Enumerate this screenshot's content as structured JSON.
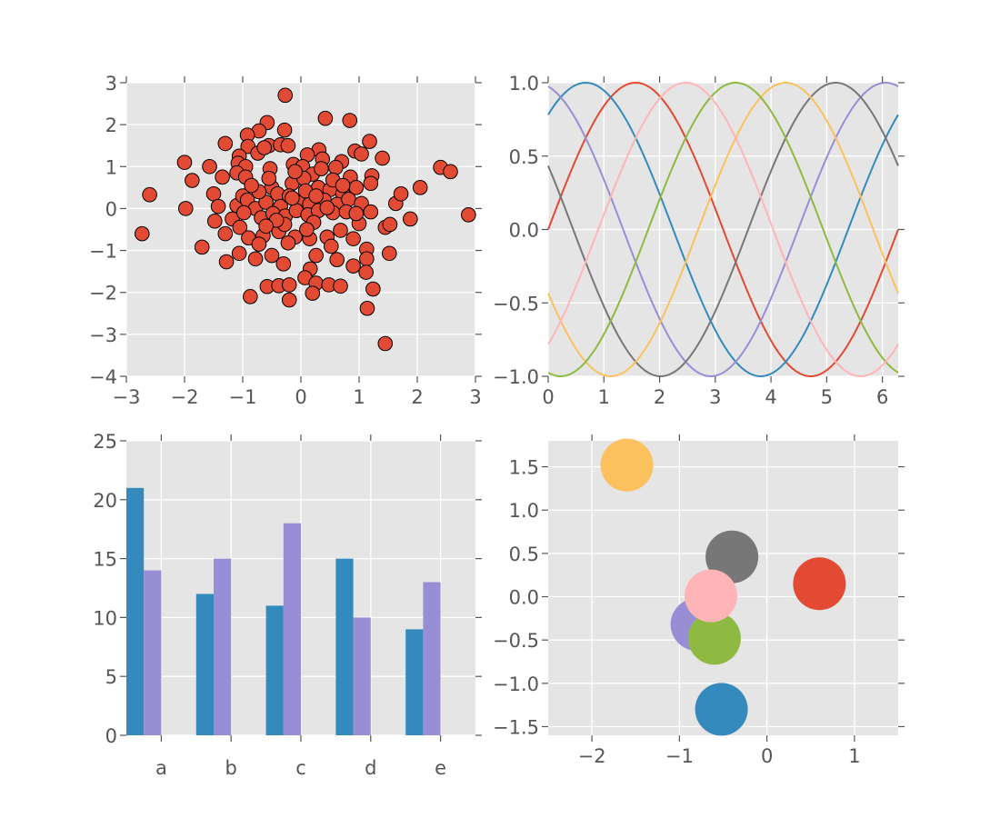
{
  "chart_data": [
    {
      "id": "scatter",
      "type": "scatter",
      "xlim": [
        -3,
        3
      ],
      "ylim": [
        -4,
        3
      ],
      "grid": true,
      "marker_color": "#E24A33",
      "x_ticks": [
        -3,
        -2,
        -1,
        0,
        1,
        2,
        3
      ],
      "x_tick_labels": [
        "−3",
        "−2",
        "−1",
        "0",
        "1",
        "2",
        "3"
      ],
      "y_ticks": [
        -4,
        -3,
        -2,
        -1,
        0,
        1,
        2,
        3
      ],
      "y_tick_labels": [
        "−4",
        "−3",
        "−2",
        "−1",
        "0",
        "1",
        "2",
        "3"
      ],
      "points": [
        [
          -0.27,
          2.7
        ],
        [
          0.42,
          2.15
        ],
        [
          0.84,
          2.1
        ],
        [
          -0.58,
          2.05
        ],
        [
          -0.28,
          1.87
        ],
        [
          -0.72,
          1.85
        ],
        [
          -0.92,
          1.75
        ],
        [
          1.18,
          1.6
        ],
        [
          -1.3,
          1.55
        ],
        [
          -0.91,
          1.48
        ],
        [
          -0.55,
          1.5
        ],
        [
          -0.35,
          1.52
        ],
        [
          -0.22,
          1.5
        ],
        [
          0.31,
          1.4
        ],
        [
          0.93,
          1.37
        ],
        [
          0.11,
          1.28
        ],
        [
          1.04,
          1.3
        ],
        [
          -1.06,
          1.25
        ],
        [
          -0.74,
          1.32
        ],
        [
          -0.63,
          1.45
        ],
        [
          0.37,
          1.18
        ],
        [
          0.7,
          1.12
        ],
        [
          1.4,
          1.2
        ],
        [
          -2.0,
          1.1
        ],
        [
          -1.57,
          1.0
        ],
        [
          -1.08,
          1.08
        ],
        [
          -0.95,
          1.0
        ],
        [
          -0.53,
          0.95
        ],
        [
          -0.13,
          1.05
        ],
        [
          0.03,
          1.0
        ],
        [
          0.6,
          0.98
        ],
        [
          -1.1,
          0.85
        ],
        [
          -0.95,
          0.75
        ],
        [
          0.2,
          0.82
        ],
        [
          0.85,
          0.75
        ],
        [
          1.22,
          0.78
        ],
        [
          2.4,
          0.98
        ],
        [
          2.57,
          0.88
        ],
        [
          -1.87,
          0.67
        ],
        [
          -1.5,
          0.35
        ],
        [
          -1.42,
          0.05
        ],
        [
          -1.1,
          0.07
        ],
        [
          -1.0,
          0.3
        ],
        [
          -0.92,
          0.2
        ],
        [
          -0.78,
          0.0
        ],
        [
          -0.5,
          0.5
        ],
        [
          -0.4,
          0.35
        ],
        [
          -0.15,
          0.6
        ],
        [
          0.05,
          0.72
        ],
        [
          0.3,
          0.5
        ],
        [
          0.5,
          0.45
        ],
        [
          0.72,
          0.35
        ],
        [
          0.95,
          0.5
        ],
        [
          1.2,
          0.6
        ],
        [
          2.05,
          0.5
        ],
        [
          -2.6,
          0.33
        ],
        [
          -0.6,
          0.15
        ],
        [
          -0.35,
          0.05
        ],
        [
          -0.2,
          0.3
        ],
        [
          -0.05,
          0.15
        ],
        [
          0.15,
          0.1
        ],
        [
          0.4,
          0.2
        ],
        [
          0.62,
          0.1
        ],
        [
          0.82,
          0.22
        ],
        [
          1.04,
          0.12
        ],
        [
          1.63,
          0.12
        ],
        [
          1.72,
          0.35
        ],
        [
          -1.98,
          0.0
        ],
        [
          -1.48,
          -0.3
        ],
        [
          -1.18,
          -0.25
        ],
        [
          -0.98,
          -0.1
        ],
        [
          -0.68,
          -0.22
        ],
        [
          -0.48,
          -0.12
        ],
        [
          -0.27,
          -0.18
        ],
        [
          -0.08,
          -0.05
        ],
        [
          0.12,
          -0.15
        ],
        [
          0.3,
          -0.05
        ],
        [
          0.55,
          -0.1
        ],
        [
          0.78,
          -0.08
        ],
        [
          1.0,
          -0.36
        ],
        [
          1.45,
          -0.45
        ],
        [
          1.88,
          -0.25
        ],
        [
          2.88,
          -0.15
        ],
        [
          -2.73,
          -0.6
        ],
        [
          -1.3,
          -0.6
        ],
        [
          -1.05,
          -0.45
        ],
        [
          -0.9,
          -0.7
        ],
        [
          -0.65,
          -0.65
        ],
        [
          -0.38,
          -0.55
        ],
        [
          -0.1,
          -0.68
        ],
        [
          0.15,
          -0.72
        ],
        [
          0.45,
          -0.68
        ],
        [
          0.68,
          -0.52
        ],
        [
          0.9,
          -0.72
        ],
        [
          -1.7,
          -0.92
        ],
        [
          -0.72,
          -0.85
        ],
        [
          -0.22,
          -0.82
        ],
        [
          0.52,
          -0.9
        ],
        [
          1.13,
          -0.97
        ],
        [
          1.52,
          -1.07
        ],
        [
          -1.28,
          -1.27
        ],
        [
          -1.06,
          -1.07
        ],
        [
          -0.5,
          -1.12
        ],
        [
          0.26,
          -1.12
        ],
        [
          0.62,
          -1.22
        ],
        [
          0.9,
          -1.37
        ],
        [
          1.13,
          -1.2
        ],
        [
          -0.78,
          -1.2
        ],
        [
          -0.3,
          -1.32
        ],
        [
          0.16,
          -1.44
        ],
        [
          1.12,
          -1.52
        ],
        [
          0.07,
          -1.65
        ],
        [
          0.26,
          -1.78
        ],
        [
          -0.58,
          -1.86
        ],
        [
          -0.38,
          -1.84
        ],
        [
          -0.2,
          -1.82
        ],
        [
          0.48,
          -1.82
        ],
        [
          0.68,
          -1.85
        ],
        [
          1.24,
          -1.92
        ],
        [
          0.2,
          -2.02
        ],
        [
          -0.87,
          -2.1
        ],
        [
          -0.2,
          -2.18
        ],
        [
          1.14,
          -2.38
        ],
        [
          1.45,
          -3.22
        ],
        [
          -0.55,
          0.72
        ],
        [
          -0.1,
          0.88
        ],
        [
          0.08,
          0.42
        ],
        [
          0.26,
          0.3
        ],
        [
          -0.72,
          0.4
        ],
        [
          0.45,
          0.02
        ],
        [
          -0.28,
          -0.38
        ],
        [
          0.22,
          -0.33
        ],
        [
          0.55,
          0.68
        ],
        [
          0.95,
          -0.12
        ],
        [
          1.2,
          -0.08
        ],
        [
          -1.35,
          0.75
        ],
        [
          -0.15,
          0.25
        ],
        [
          -0.42,
          -0.28
        ],
        [
          0.1,
          -0.5
        ],
        [
          0.35,
          0.95
        ],
        [
          0.72,
          0.55
        ],
        [
          -0.85,
          0.55
        ],
        [
          1.53,
          -0.38
        ],
        [
          -0.6,
          -0.42
        ]
      ]
    },
    {
      "id": "lines",
      "type": "line",
      "xlim": [
        0,
        6.2832
      ],
      "ylim": [
        -1,
        1
      ],
      "grid": true,
      "x_ticks": [
        0,
        1,
        2,
        3,
        4,
        5,
        6
      ],
      "x_tick_labels": [
        "0",
        "1",
        "2",
        "3",
        "4",
        "5",
        "6"
      ],
      "y_ticks": [
        -1,
        -0.5,
        0,
        0.5,
        1
      ],
      "y_tick_labels": [
        "−1.0",
        "−0.5",
        "0.0",
        "0.5",
        "1.0"
      ],
      "series": [
        {
          "color": "#E24A33",
          "phase": 0.0
        },
        {
          "color": "#348ABD",
          "phase": 0.8976
        },
        {
          "color": "#988ED5",
          "phase": 1.7952
        },
        {
          "color": "#777777",
          "phase": 2.6928
        },
        {
          "color": "#FBC15E",
          "phase": 3.5904
        },
        {
          "color": "#8EBA42",
          "phase": 4.488
        },
        {
          "color": "#FFB5B8",
          "phase": 5.3856
        }
      ]
    },
    {
      "id": "bars",
      "type": "bar",
      "categories": [
        "a",
        "b",
        "c",
        "d",
        "e"
      ],
      "ylim": [
        0,
        25
      ],
      "grid": true,
      "y_ticks": [
        0,
        5,
        10,
        15,
        20,
        25
      ],
      "y_tick_labels": [
        "0",
        "5",
        "10",
        "15",
        "20",
        "25"
      ],
      "series": [
        {
          "color": "#348ABD",
          "values": [
            21,
            12,
            11,
            15,
            9
          ]
        },
        {
          "color": "#988ED5",
          "values": [
            14,
            15,
            18,
            10,
            13
          ]
        }
      ]
    },
    {
      "id": "circles",
      "type": "scatter",
      "xlim": [
        -2.5,
        1.5
      ],
      "ylim": [
        -1.6,
        1.8
      ],
      "grid": true,
      "x_ticks": [
        -2,
        -1,
        0,
        1
      ],
      "x_tick_labels": [
        "−2",
        "−1",
        "0",
        "1"
      ],
      "y_ticks": [
        -1.5,
        -1.0,
        -0.5,
        0.0,
        0.5,
        1.0,
        1.5
      ],
      "y_tick_labels": [
        "−1.5",
        "−1.0",
        "−0.5",
        "0.0",
        "0.5",
        "1.0",
        "1.5"
      ],
      "points": [
        {
          "x": 0.6,
          "y": 0.15,
          "color": "#E24A33"
        },
        {
          "x": -0.52,
          "y": -1.3,
          "color": "#348ABD"
        },
        {
          "x": -0.8,
          "y": -0.32,
          "color": "#988ED5"
        },
        {
          "x": -0.4,
          "y": 0.46,
          "color": "#777777"
        },
        {
          "x": -1.6,
          "y": 1.52,
          "color": "#FBC15E"
        },
        {
          "x": -0.6,
          "y": -0.48,
          "color": "#8EBA42"
        },
        {
          "x": -0.64,
          "y": 0.01,
          "color": "#FFB5B8"
        }
      ]
    }
  ]
}
